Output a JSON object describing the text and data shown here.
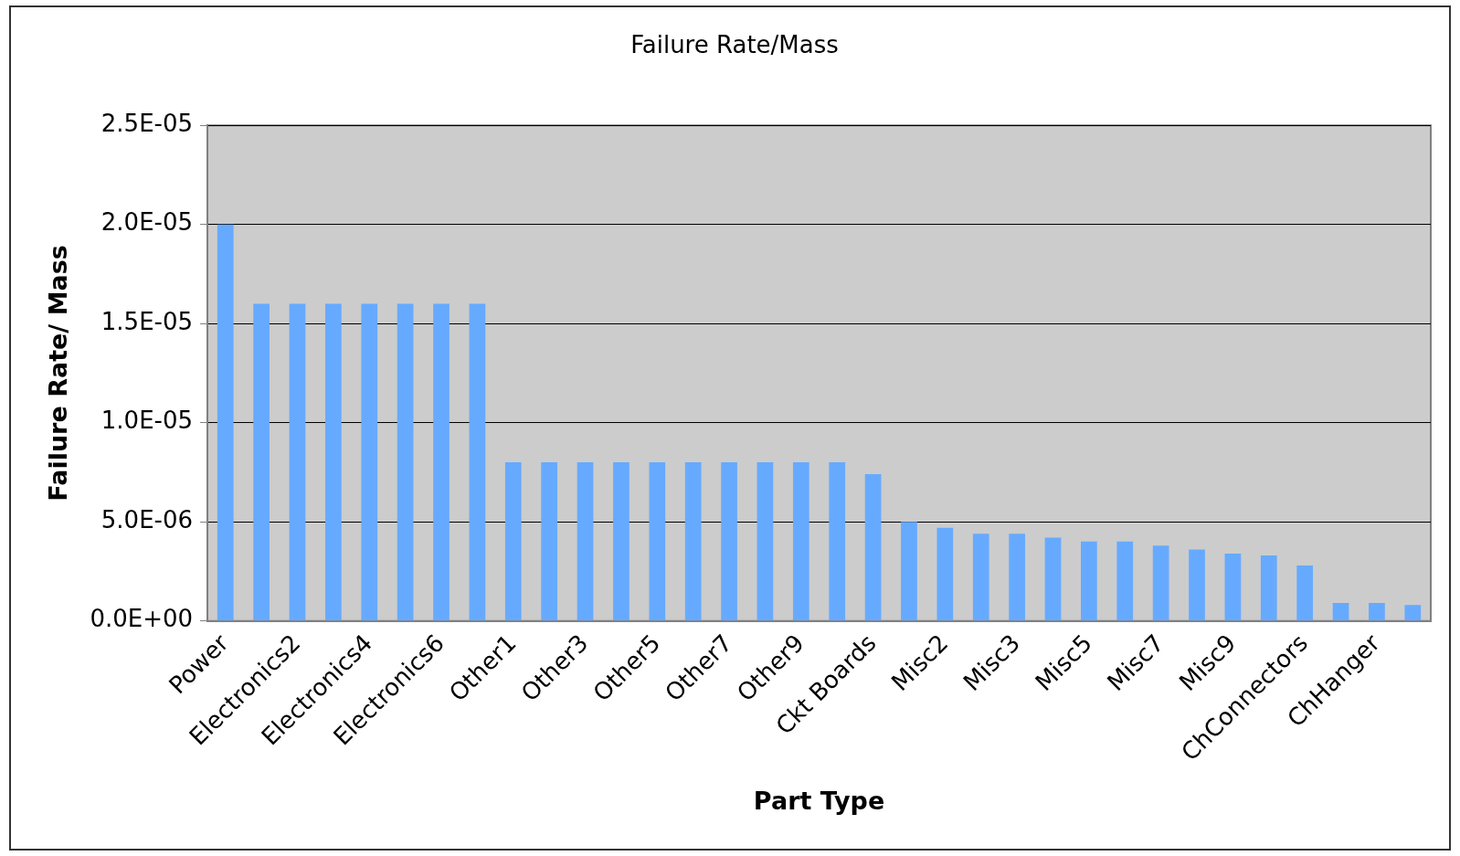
{
  "chart_data": {
    "type": "bar",
    "title": "Failure Rate/Mass",
    "xlabel": "Part Type",
    "ylabel": "Failure Rate/ Mass",
    "categories": [
      "Power",
      null,
      "Electronics2",
      null,
      "Electronics4",
      null,
      "Electronics6",
      null,
      "Other1",
      null,
      "Other3",
      null,
      "Other5",
      null,
      "Other7",
      null,
      "Other9",
      null,
      "Ckt Boards",
      null,
      "Misc2",
      null,
      "Misc3",
      null,
      "Misc5",
      null,
      "Misc7",
      null,
      "Misc9",
      null,
      "ChConnectors",
      null,
      "ChHanger",
      null
    ],
    "values": [
      2e-05,
      1.6e-05,
      1.6e-05,
      1.6e-05,
      1.6e-05,
      1.6e-05,
      1.6e-05,
      1.6e-05,
      8e-06,
      8e-06,
      8e-06,
      8e-06,
      8e-06,
      8e-06,
      8e-06,
      8e-06,
      8e-06,
      8e-06,
      7.4e-06,
      5e-06,
      4.7e-06,
      4.4e-06,
      4.4e-06,
      4.2e-06,
      4e-06,
      4e-06,
      3.8e-06,
      3.6e-06,
      3.4e-06,
      3.3e-06,
      2.8e-06,
      9e-07,
      9e-07,
      8e-07
    ],
    "color": "#66aaff",
    "ylim": [
      0,
      2.5e-05
    ],
    "yticks": [
      {
        "value": 0,
        "label": "0.0E+00"
      },
      {
        "value": 5e-06,
        "label": "5.0E-06"
      },
      {
        "value": 1e-05,
        "label": "1.0E-05"
      },
      {
        "value": 1.5e-05,
        "label": "1.5E-05"
      },
      {
        "value": 2e-05,
        "label": "2.0E-05"
      },
      {
        "value": 2.5e-05,
        "label": "2.5E-05"
      }
    ],
    "grid": "y",
    "legend": false
  }
}
